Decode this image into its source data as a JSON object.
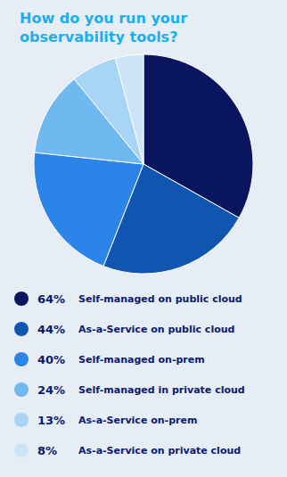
{
  "chart_data": {
    "type": "pie",
    "title": "How do you run your observability tools?",
    "categories": [
      "Self-managed on public cloud",
      "As-a-Service on public cloud",
      "Self-managed on-prem",
      "Self-managed in private cloud",
      "As-a-Service on-prem",
      "As-a-Service on private cloud"
    ],
    "values": [
      64,
      44,
      40,
      24,
      13,
      8
    ],
    "value_labels": [
      "64%",
      "44%",
      "40%",
      "24%",
      "13%",
      "8%"
    ],
    "colors": [
      "#0a1560",
      "#1055b0",
      "#2b85e8",
      "#70b8f0",
      "#a8d4f5",
      "#cce4f8"
    ],
    "legend": "bottom"
  }
}
